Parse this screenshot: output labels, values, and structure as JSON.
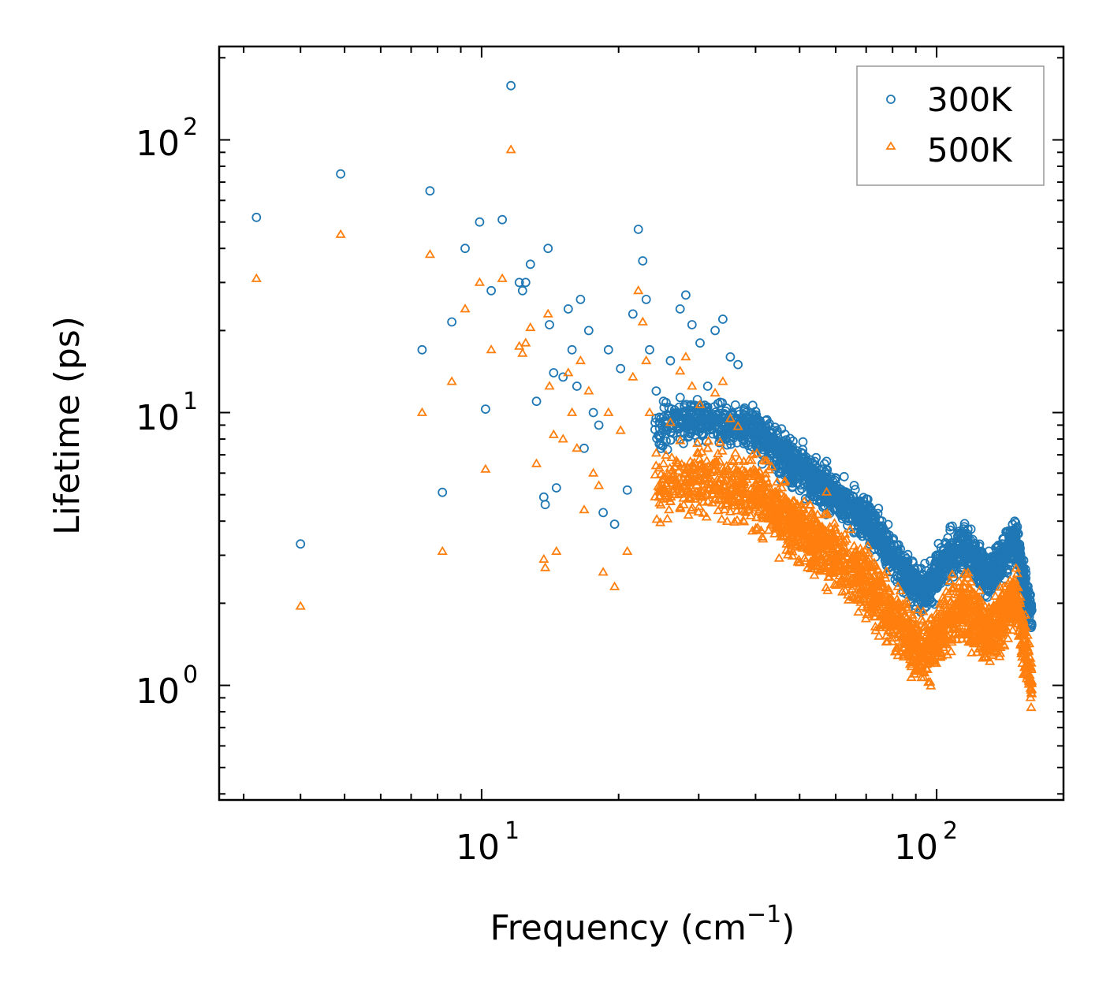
{
  "chart_data": {
    "type": "scatter",
    "title": "",
    "xlabel": "Frequency (cm",
    "xlabel_sup": "−1",
    "xlabel_end": ")",
    "ylabel": "Lifetime (ps)",
    "xscale": "log",
    "yscale": "log",
    "xlim": [
      2.65,
      190
    ],
    "ylim": [
      0.38,
      220
    ],
    "legend_position": "top-right",
    "x_tick_labels": [
      {
        "base": "10",
        "exp": "1",
        "value": 10
      },
      {
        "base": "10",
        "exp": "2",
        "value": 100
      }
    ],
    "y_tick_labels": [
      {
        "base": "10",
        "exp": "0",
        "value": 1
      },
      {
        "base": "10",
        "exp": "1",
        "value": 10
      },
      {
        "base": "10",
        "exp": "2",
        "value": 100
      }
    ],
    "colors": {
      "300K": "#1f77b4",
      "500K": "#ff7f0e",
      "axes": "#000000",
      "legend_frame": "#999999"
    },
    "series": [
      {
        "name": "300K",
        "marker": "circle",
        "x": [
          3.2,
          4.0,
          4.9,
          7.4,
          7.7,
          8.2,
          8.6,
          9.2,
          9.9,
          10.2,
          10.5,
          11.1,
          11.6,
          12.1,
          12.3,
          12.5,
          12.8,
          13.2,
          13.7,
          13.8,
          14.0,
          14.1,
          14.4,
          14.6,
          15.1,
          15.5,
          15.8,
          16.2,
          16.5,
          16.8,
          17.2,
          17.6,
          18.1,
          18.5,
          19.0,
          19.6,
          20.2,
          20.9,
          21.5,
          22.1,
          22.6,
          23.0,
          23.4,
          24.2,
          25.1,
          26.0,
          27.3,
          28.1,
          29.0,
          30.2,
          31.4,
          32.6,
          33.9,
          35.2,
          36.6
        ],
        "y": [
          52,
          3.3,
          75,
          17,
          65,
          5.1,
          21.5,
          40,
          50,
          10.3,
          28,
          51,
          158,
          30,
          28,
          30,
          35,
          11,
          4.9,
          4.6,
          40,
          21,
          14,
          5.3,
          13.5,
          24,
          17,
          12.5,
          26,
          7.4,
          20,
          10,
          9,
          4.3,
          17,
          3.9,
          14.5,
          5.2,
          23,
          47,
          36,
          26,
          17,
          12,
          11,
          15.5,
          24,
          27,
          21,
          18,
          12.5,
          20,
          22,
          16,
          15
        ]
      },
      {
        "name": "500K",
        "marker": "triangle",
        "x": [
          3.2,
          4.0,
          4.9,
          7.4,
          7.7,
          8.2,
          8.6,
          9.2,
          9.9,
          10.2,
          10.5,
          11.1,
          11.6,
          12.1,
          12.3,
          12.5,
          12.8,
          13.2,
          13.7,
          13.8,
          14.0,
          14.1,
          14.4,
          14.6,
          15.1,
          15.5,
          15.8,
          16.2,
          16.5,
          16.8,
          17.2,
          17.6,
          18.1,
          18.5,
          19.0,
          19.6,
          20.2,
          20.9,
          21.5,
          22.1,
          22.6,
          23.0,
          23.4,
          24.2,
          25.1,
          26.0,
          27.3,
          28.1,
          29.0,
          30.2,
          31.4,
          32.6,
          33.9,
          35.2,
          36.6
        ],
        "y": [
          31,
          1.95,
          45,
          10,
          38,
          3.1,
          13,
          24,
          30,
          6.2,
          17,
          31,
          92,
          17.5,
          16.5,
          18,
          20.5,
          6.5,
          2.9,
          2.7,
          23,
          12.5,
          8.3,
          3.1,
          8,
          14,
          10,
          7.4,
          15.5,
          4.4,
          12,
          6,
          5.4,
          2.6,
          10,
          2.3,
          8.6,
          3.1,
          13.5,
          28,
          21.5,
          15.5,
          10,
          7.1,
          6.5,
          9.2,
          14.2,
          16,
          12.5,
          10.7,
          7.4,
          11.8,
          13,
          9.5,
          8.9
        ]
      }
    ]
  }
}
